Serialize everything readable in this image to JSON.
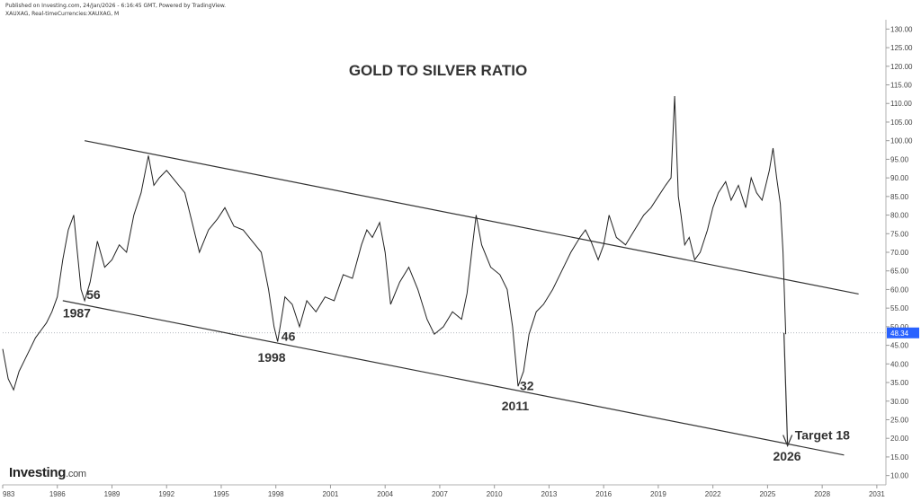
{
  "header": {
    "published": "Published on Investing.com, 24/Jan/2026 - 6:16:45 GMT, Powered by TradingView.",
    "symbol": "XAUXAG, Real-timeCurrencies:XAUXAG, M"
  },
  "brand": {
    "name": "Investing",
    "suffix": ".com"
  },
  "chart_data": {
    "type": "line",
    "title": "GOLD TO SILVER RATIO",
    "xlim": [
      1983,
      2031.5
    ],
    "ylim": [
      7.5,
      132.5
    ],
    "x_ticks": [
      "983",
      "1986",
      "1989",
      "1992",
      "1995",
      "1998",
      "2001",
      "2004",
      "2007",
      "2010",
      "2013",
      "2016",
      "2019",
      "2022",
      "2025",
      "2028",
      "2031"
    ],
    "x_tick_values": [
      1983,
      1986,
      1989,
      1992,
      1995,
      1998,
      2001,
      2004,
      2007,
      2010,
      2013,
      2016,
      2019,
      2022,
      2025,
      2028,
      2031
    ],
    "y_ticks": [
      "10.00",
      "15.00",
      "20.00",
      "25.00",
      "30.00",
      "35.00",
      "40.00",
      "45.00",
      "50.00",
      "55.00",
      "60.00",
      "65.00",
      "70.00",
      "75.00",
      "80.00",
      "85.00",
      "90.00",
      "95.00",
      "100.00",
      "105.00",
      "110.00",
      "115.00",
      "120.00",
      "125.00",
      "130.00"
    ],
    "y_tick_values": [
      10,
      15,
      20,
      25,
      30,
      35,
      40,
      45,
      50,
      55,
      60,
      65,
      70,
      75,
      80,
      85,
      90,
      95,
      100,
      105,
      110,
      115,
      120,
      125,
      130
    ],
    "last_value": {
      "label": "48.34",
      "value": 48.34,
      "color": "#2962ff"
    },
    "series": [
      {
        "color": "#222222",
        "x": [
          1983.0,
          1983.3,
          1983.6,
          1983.9,
          1984.2,
          1984.5,
          1984.8,
          1985.1,
          1985.4,
          1985.7,
          1986.0,
          1986.3,
          1986.6,
          1986.9,
          1987.1,
          1987.3,
          1987.5,
          1987.8,
          1988.2,
          1988.6,
          1989.0,
          1989.4,
          1989.8,
          1990.2,
          1990.6,
          1991.0,
          1991.3,
          1991.6,
          1992.0,
          1992.5,
          1993.0,
          1993.4,
          1993.8,
          1994.3,
          1994.8,
          1995.2,
          1995.7,
          1996.2,
          1996.7,
          1997.2,
          1997.6,
          1997.9,
          1998.1,
          1998.3,
          1998.5,
          1998.9,
          1999.3,
          1999.7,
          2000.2,
          2000.7,
          2001.2,
          2001.7,
          2002.2,
          2002.7,
          2003.0,
          2003.3,
          2003.7,
          2004.0,
          2004.3,
          2004.8,
          2005.3,
          2005.8,
          2006.3,
          2006.7,
          2007.2,
          2007.7,
          2008.2,
          2008.5,
          2008.8,
          2009.0,
          2009.3,
          2009.8,
          2010.3,
          2010.7,
          2011.0,
          2011.3,
          2011.6,
          2011.9,
          2012.3,
          2012.7,
          2013.2,
          2013.7,
          2014.2,
          2014.7,
          2015.0,
          2015.3,
          2015.7,
          2016.0,
          2016.3,
          2016.7,
          2017.2,
          2017.7,
          2018.2,
          2018.6,
          2019.0,
          2019.4,
          2019.7,
          2019.9,
          2020.1,
          2020.25,
          2020.45,
          2020.7,
          2021.0,
          2021.3,
          2021.7,
          2022.0,
          2022.3,
          2022.7,
          2023.0,
          2023.4,
          2023.8,
          2024.1,
          2024.4,
          2024.7,
          2024.9,
          2025.1,
          2025.3,
          2025.5,
          2025.7,
          2025.85,
          2026.0
        ],
        "y": [
          44,
          36,
          33,
          38,
          41,
          44,
          47,
          49,
          51,
          54,
          58,
          68,
          76,
          80,
          70,
          60,
          57,
          62,
          73,
          66,
          68,
          72,
          70,
          80,
          86,
          96,
          88,
          90,
          92,
          89,
          86,
          78,
          70,
          76,
          79,
          82,
          77,
          76,
          73,
          70,
          60,
          50,
          46,
          52,
          58,
          56,
          50,
          57,
          54,
          58,
          57,
          64,
          63,
          72,
          76,
          74,
          78,
          70,
          56,
          62,
          66,
          60,
          52,
          48,
          50,
          54,
          52,
          59,
          72,
          80,
          72,
          66,
          64,
          60,
          50,
          34,
          38,
          48,
          54,
          56,
          60,
          65,
          70,
          74,
          76,
          73,
          68,
          72,
          80,
          74,
          72,
          76,
          80,
          82,
          85,
          88,
          90,
          112,
          85,
          80,
          72,
          74,
          68,
          70,
          76,
          82,
          86,
          89,
          84,
          88,
          82,
          90,
          86,
          84,
          88,
          92,
          98,
          90,
          83,
          70,
          48
        ]
      }
    ],
    "trendlines": [
      {
        "name": "upper",
        "x": [
          1987.5,
          2030.0
        ],
        "y": [
          100,
          58.8
        ],
        "color": "#333333"
      },
      {
        "name": "lower",
        "x": [
          1986.3,
          2029.2
        ],
        "y": [
          57,
          15.5
        ],
        "color": "#333333"
      }
    ],
    "arrow": {
      "x": [
        2025.9,
        2026.1
      ],
      "y": [
        48.34,
        18.0
      ],
      "color": "#333333"
    },
    "annotations": [
      {
        "text": "56",
        "x": 1987.6,
        "y": 57.5
      },
      {
        "text": "1987",
        "x": 1986.3,
        "y": 52.5
      },
      {
        "text": "46",
        "x": 1998.3,
        "y": 46.2
      },
      {
        "text": "1998",
        "x": 1997.0,
        "y": 40.5
      },
      {
        "text": "32",
        "x": 2011.4,
        "y": 33.0
      },
      {
        "text": "2011",
        "x": 2010.4,
        "y": 27.5
      },
      {
        "text": "Target 18",
        "x": 2026.5,
        "y": 19.7
      },
      {
        "text": "2026",
        "x": 2025.3,
        "y": 14.0
      }
    ]
  }
}
